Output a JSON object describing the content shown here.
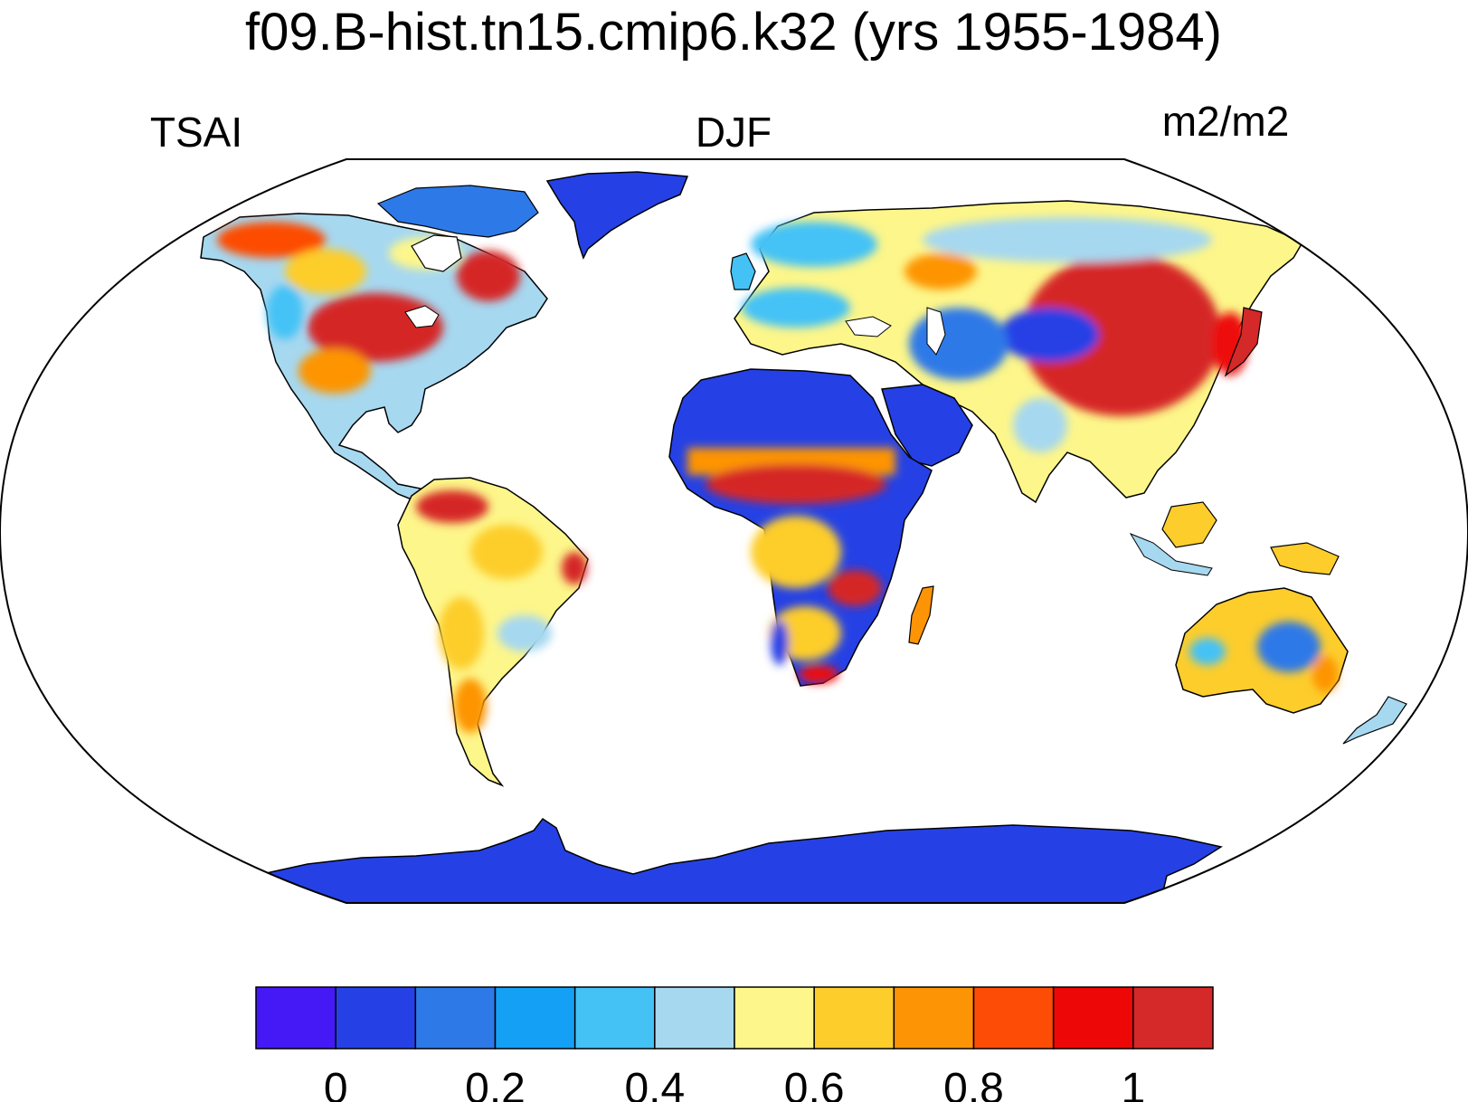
{
  "title": "f09.B-hist.tn15.cmip6.k32 (yrs 1955-1984)",
  "left_string": "TSAI",
  "center_string": "DJF",
  "right_string": "m2/m2",
  "colorbar": {
    "colors": [
      "#4419f5",
      "#2541e5",
      "#2e79e8",
      "#14a0f5",
      "#44c2f6",
      "#a6d8f0",
      "#fdf68a",
      "#fdcd2c",
      "#fd9406",
      "#fd4c05",
      "#ee0707",
      "#d52828"
    ],
    "tick_labels": [
      "0",
      "0.2",
      "0.4",
      "0.6",
      "0.8",
      "1"
    ],
    "tick_values": [
      0,
      0.2,
      0.4,
      0.6,
      0.8,
      1
    ],
    "level_step": 0.1
  },
  "map": {
    "projection": "robinson",
    "ocean_color": "#ffffff",
    "coastline_color": "#000000"
  }
}
